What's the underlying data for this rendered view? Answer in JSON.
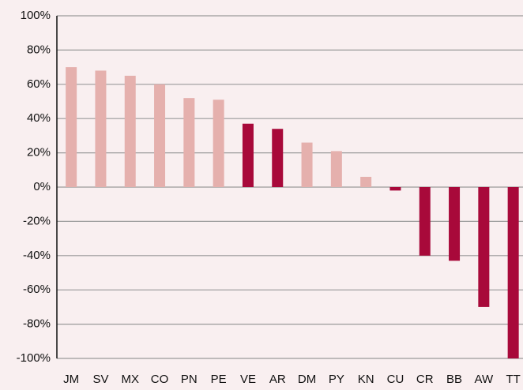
{
  "chart_data": {
    "type": "bar",
    "categories": [
      "JM",
      "SV",
      "MX",
      "CO",
      "PN",
      "PE",
      "VE",
      "AR",
      "DM",
      "PY",
      "KN",
      "CU",
      "CR",
      "BB",
      "AW",
      "TT"
    ],
    "values": [
      70,
      68,
      65,
      60,
      52,
      51,
      37,
      34,
      26,
      21,
      6,
      -2,
      -40,
      -43,
      -70,
      -100
    ],
    "colors": [
      "#e5b0ad",
      "#e5b0ad",
      "#e5b0ad",
      "#e5b0ad",
      "#e5b0ad",
      "#e5b0ad",
      "#a8093a",
      "#a8093a",
      "#e5b0ad",
      "#e5b0ad",
      "#e5b0ad",
      "#a8093a",
      "#a8093a",
      "#a8093a",
      "#a8093a",
      "#a8093a"
    ],
    "ylim": [
      -100,
      100
    ],
    "yticks": [
      {
        "value": -100,
        "label": "-100%"
      },
      {
        "value": -80,
        "label": "-80%"
      },
      {
        "value": -60,
        "label": "-60%"
      },
      {
        "value": -40,
        "label": "-40%"
      },
      {
        "value": -20,
        "label": "-20%"
      },
      {
        "value": 0,
        "label": "0%"
      },
      {
        "value": 20,
        "label": "20%"
      },
      {
        "value": 40,
        "label": "40%"
      },
      {
        "value": 60,
        "label": "60%"
      },
      {
        "value": 80,
        "label": "80%"
      },
      {
        "value": 100,
        "label": "100%"
      }
    ],
    "grid": true
  }
}
